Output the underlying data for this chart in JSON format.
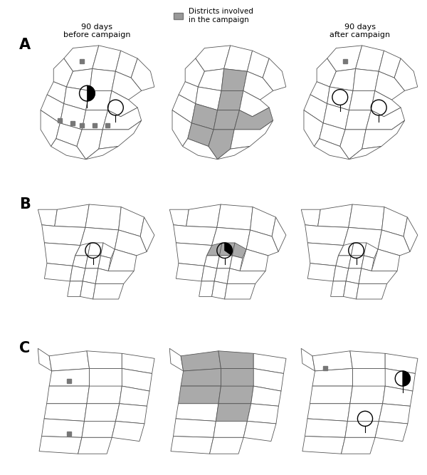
{
  "col_titles": [
    "90 days\nbefore campaign",
    "Districts involved\nin the campaign",
    "90 days\nafter campaign"
  ],
  "legend_label": "Districts involved\nin the campaign",
  "legend_color": "#999999",
  "district_color": "#aaaaaa",
  "map_edge_color": "#555555",
  "map_face_color": "#ffffff",
  "background_color": "#ffffff",
  "marker_case_color": "#777777",
  "row_labels": [
    "A",
    "B",
    "C"
  ]
}
